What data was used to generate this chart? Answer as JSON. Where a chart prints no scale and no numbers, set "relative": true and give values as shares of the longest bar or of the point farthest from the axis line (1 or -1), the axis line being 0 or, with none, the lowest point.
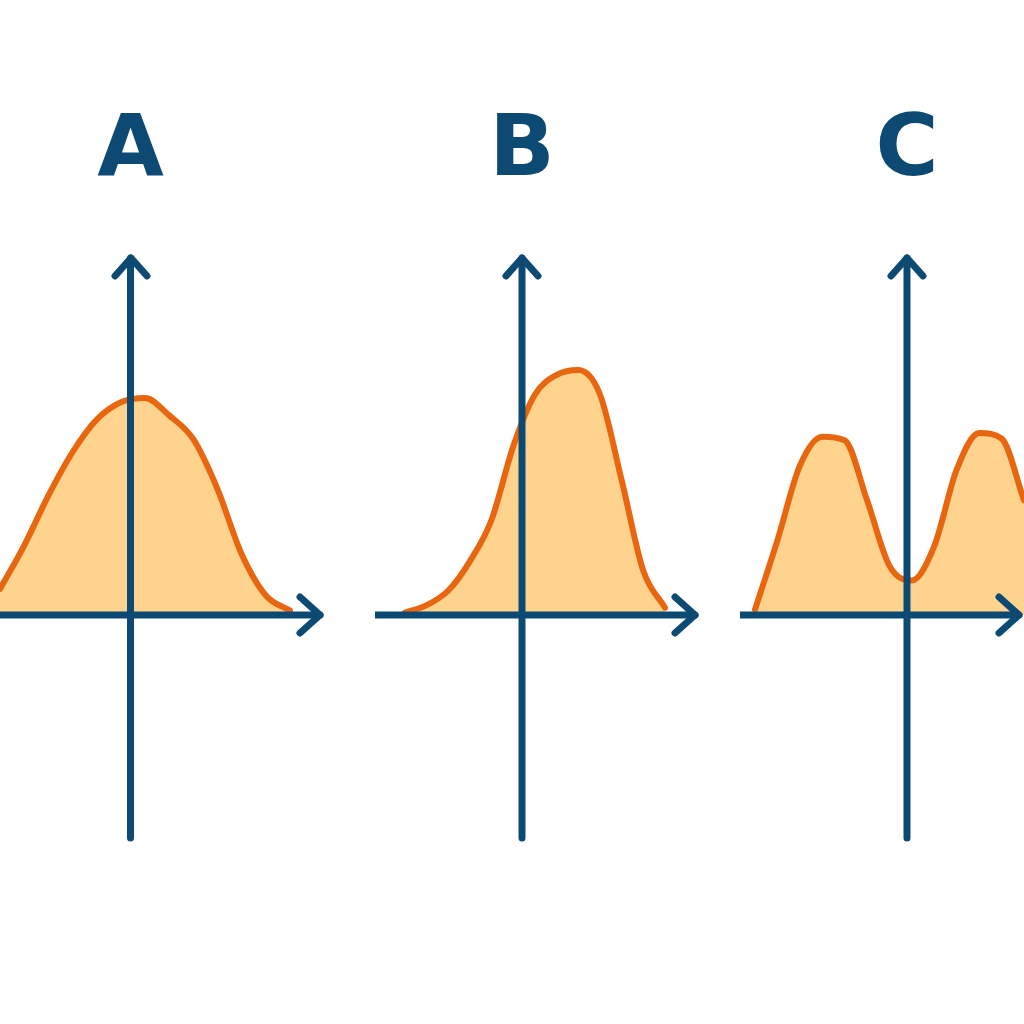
{
  "chart_data": [
    {
      "type": "area",
      "title": "A",
      "relative": true,
      "categories": [
        null,
        null,
        null,
        null,
        null,
        null,
        null,
        null,
        null,
        null,
        null,
        null,
        null
      ],
      "series": [
        {
          "color": "#e8660f",
          "values": [
            0.12,
            0.32,
            0.55,
            0.75,
            0.9,
            0.98,
            1.0,
            0.92,
            0.81,
            0.58,
            0.28,
            0.09,
            0.02
          ]
        }
      ]
    },
    {
      "type": "area",
      "title": "B",
      "relative": true,
      "categories": [
        null,
        null,
        null,
        null,
        null,
        null,
        null,
        null,
        null,
        null,
        null,
        null,
        null
      ],
      "series": [
        {
          "color": "#e8660f",
          "values": [
            0.01,
            0.04,
            0.1,
            0.22,
            0.39,
            0.69,
            0.9,
            0.98,
            1.0,
            0.9,
            0.55,
            0.18,
            0.03
          ]
        }
      ]
    },
    {
      "type": "area",
      "title": "C",
      "relative": true,
      "categories": [
        null,
        null,
        null,
        null,
        null,
        null,
        null,
        null,
        null,
        null,
        null,
        null,
        null
      ],
      "series": [
        {
          "color": "#e8660f",
          "values": [
            0.03,
            0.41,
            0.82,
            0.98,
            0.96,
            0.63,
            0.27,
            0.19,
            0.38,
            0.8,
            1.0,
            0.97,
            0.63
          ]
        }
      ]
    }
  ]
}
